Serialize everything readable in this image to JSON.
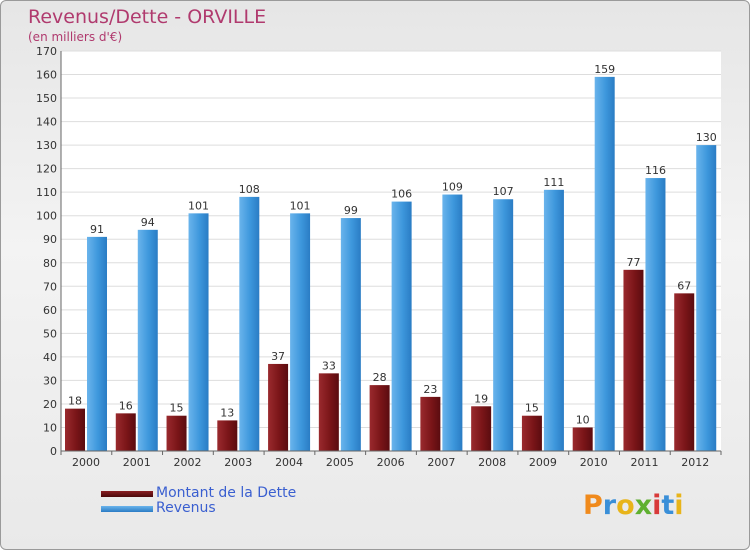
{
  "chart_data": {
    "type": "bar",
    "title": "Revenus/Dette - ORVILLE",
    "subtitle": "(en milliers d'€)",
    "categories": [
      "2000",
      "2001",
      "2002",
      "2003",
      "2004",
      "2005",
      "2006",
      "2007",
      "2008",
      "2009",
      "2010",
      "2011",
      "2012"
    ],
    "series": [
      {
        "name": "Montant de la Dette",
        "color": "#7a1518",
        "values": [
          18,
          16,
          15,
          13,
          37,
          33,
          28,
          23,
          19,
          15,
          10,
          77,
          67
        ]
      },
      {
        "name": "Revenus",
        "color": "#3d97dc",
        "values": [
          91,
          94,
          101,
          108,
          101,
          99,
          106,
          109,
          107,
          111,
          159,
          116,
          130
        ]
      }
    ],
    "ylim": [
      0,
      170
    ],
    "yticks": [
      0,
      10,
      20,
      30,
      40,
      50,
      60,
      70,
      80,
      90,
      100,
      110,
      120,
      130,
      140,
      150,
      160,
      170
    ],
    "grid": true,
    "legend_position": "bottom-left"
  },
  "logo": {
    "text": "Proxiti",
    "letter_colors": [
      "#f08a1c",
      "#3a8fd8",
      "#e8b41a",
      "#5fb030",
      "#d83a3a",
      "#3a8fd8",
      "#e8b41a"
    ]
  }
}
